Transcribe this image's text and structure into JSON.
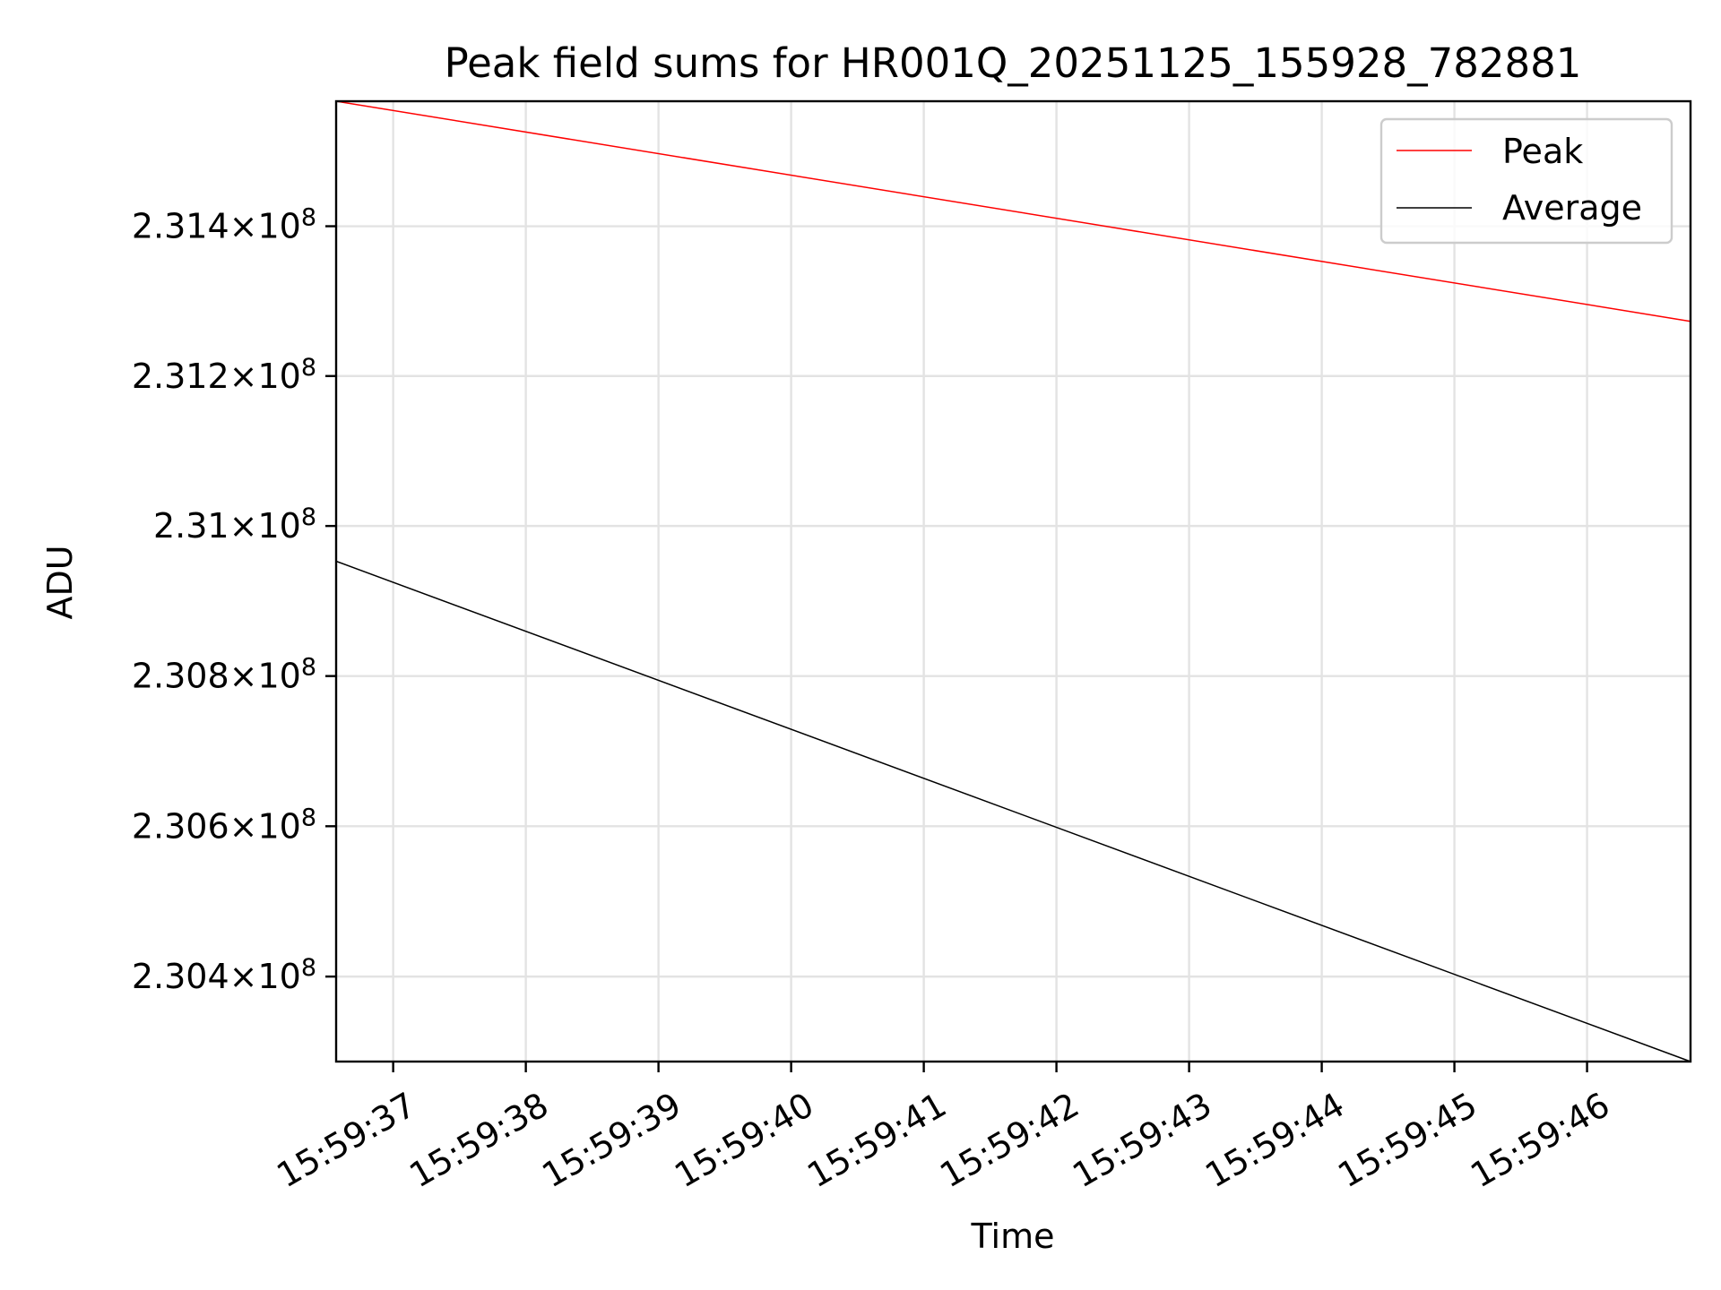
{
  "chart_data": {
    "type": "line",
    "title": "Peak field sums for HR001Q_20251125_155928_782881",
    "xlabel": "Time",
    "ylabel": "ADU",
    "x_tick_labels": [
      "15:59:37",
      "15:59:38",
      "15:59:39",
      "15:59:40",
      "15:59:41",
      "15:59:42",
      "15:59:43",
      "15:59:44",
      "15:59:45",
      "15:59:46"
    ],
    "xlim": [
      "15:59:36.57",
      "15:59:46.78"
    ],
    "y_ticks": [
      {
        "value": 230400000,
        "mantissa": "2.304",
        "exp": "8"
      },
      {
        "value": 230600000,
        "mantissa": "2.306",
        "exp": "8"
      },
      {
        "value": 230800000,
        "mantissa": "2.308",
        "exp": "8"
      },
      {
        "value": 231000000,
        "mantissa": "2.31",
        "exp": "8"
      },
      {
        "value": 231200000,
        "mantissa": "2.312",
        "exp": "8"
      },
      {
        "value": 231400000,
        "mantissa": "2.314",
        "exp": "8"
      }
    ],
    "ylim": [
      230287000,
      231567000
    ],
    "y_scale": "log",
    "grid": true,
    "legend_position": "top-right",
    "series": [
      {
        "name": "Peak",
        "color": "#ff0000",
        "x": [
          "15:59:36.57",
          "15:59:46.78"
        ],
        "y": [
          231567000,
          231273000
        ]
      },
      {
        "name": "Average",
        "color": "#000000",
        "x": [
          "15:59:36.57",
          "15:59:46.78"
        ],
        "y": [
          230953000,
          230287000
        ]
      }
    ]
  }
}
